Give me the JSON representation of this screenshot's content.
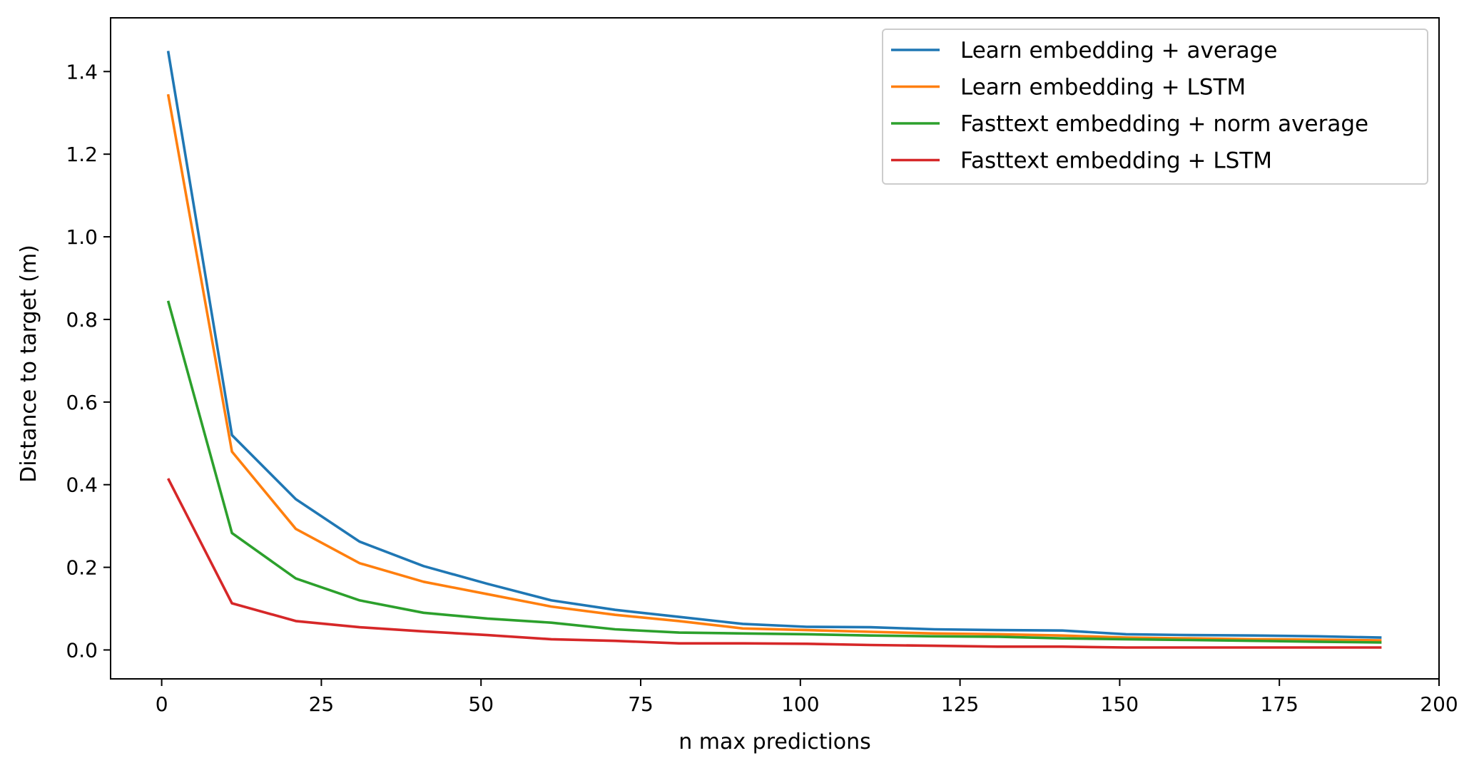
{
  "chart_data": {
    "type": "line",
    "xlabel": "n max predictions",
    "ylabel": "Distance to target (m)",
    "xlim": [
      -8,
      200
    ],
    "ylim": [
      -0.07,
      1.53
    ],
    "xticks": [
      0,
      25,
      50,
      75,
      100,
      125,
      150,
      175,
      200
    ],
    "yticks": [
      0.0,
      0.2,
      0.4,
      0.6,
      0.8,
      1.0,
      1.2,
      1.4
    ],
    "xtick_labels": [
      "0",
      "25",
      "50",
      "75",
      "100",
      "125",
      "150",
      "175",
      "200"
    ],
    "ytick_labels": [
      "0.0",
      "0.2",
      "0.4",
      "0.6",
      "0.8",
      "1.0",
      "1.2",
      "1.4"
    ],
    "grid": false,
    "legend_position": "top-right",
    "x": [
      1,
      11,
      21,
      31,
      41,
      51,
      61,
      71,
      81,
      91,
      101,
      111,
      121,
      131,
      141,
      151,
      161,
      171,
      181,
      191
    ],
    "series": [
      {
        "name": "Learn embedding + average",
        "color": "#1f77b4",
        "values": [
          1.45,
          0.52,
          0.365,
          0.262,
          0.203,
          0.16,
          0.12,
          0.097,
          0.08,
          0.063,
          0.056,
          0.055,
          0.05,
          0.048,
          0.047,
          0.038,
          0.036,
          0.035,
          0.033,
          0.03
        ]
      },
      {
        "name": "Learn embedding + LSTM",
        "color": "#ff7f0e",
        "values": [
          1.345,
          0.48,
          0.293,
          0.21,
          0.165,
          0.135,
          0.105,
          0.085,
          0.07,
          0.052,
          0.048,
          0.044,
          0.04,
          0.038,
          0.035,
          0.03,
          0.028,
          0.026,
          0.025,
          0.023
        ]
      },
      {
        "name": "Fasttext embedding + norm average",
        "color": "#2ca02c",
        "values": [
          0.845,
          0.283,
          0.173,
          0.12,
          0.09,
          0.076,
          0.066,
          0.05,
          0.042,
          0.04,
          0.038,
          0.035,
          0.033,
          0.032,
          0.028,
          0.026,
          0.024,
          0.022,
          0.02,
          0.018
        ]
      },
      {
        "name": "Fasttext embedding + LSTM",
        "color": "#d62728",
        "values": [
          0.415,
          0.113,
          0.07,
          0.055,
          0.045,
          0.036,
          0.026,
          0.022,
          0.016,
          0.016,
          0.015,
          0.012,
          0.01,
          0.008,
          0.008,
          0.006,
          0.006,
          0.006,
          0.006,
          0.006
        ]
      }
    ]
  }
}
